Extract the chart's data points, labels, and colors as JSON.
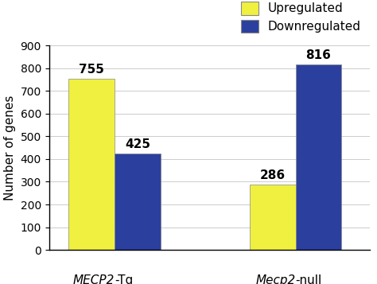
{
  "groups_italic_prefix": [
    "MECP2",
    "Mecp2"
  ],
  "groups_regular_suffix": [
    "-Tg",
    "-null"
  ],
  "upregulated": [
    755,
    286
  ],
  "downregulated": [
    425,
    816
  ],
  "bar_color_up": "#f0f040",
  "bar_color_down": "#2b3f9e",
  "ylabel": "Number of genes",
  "ylim": [
    0,
    900
  ],
  "yticks": [
    0,
    100,
    200,
    300,
    400,
    500,
    600,
    700,
    800,
    900
  ],
  "legend_labels": [
    "Upregulated",
    "Downregulated"
  ],
  "bar_width": 0.28,
  "label_fontsize": 11,
  "tick_fontsize": 10,
  "annotation_fontsize": 11,
  "background_color": "#ffffff",
  "grid_color": "#cccccc",
  "group_positions": [
    0.45,
    1.55
  ]
}
